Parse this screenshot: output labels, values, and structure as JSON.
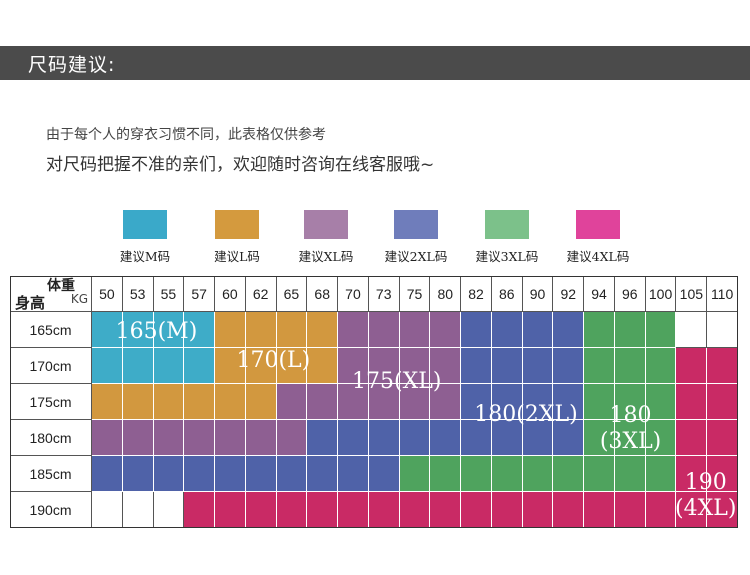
{
  "header": {
    "title": "尺码建议:"
  },
  "intro": {
    "line1": "由于每个人的穿衣习惯不同，此表格仅供参考",
    "line2": "对尺码把握不准的亲们，欢迎随时咨询在线客服哦~"
  },
  "legend": [
    {
      "label": "建议M码",
      "color": "#3aa9c9"
    },
    {
      "label": "建议L码",
      "color": "#d49a3e"
    },
    {
      "label": "建议XL码",
      "color": "#a77fa8"
    },
    {
      "label": "建议2XL码",
      "color": "#6f7dbb"
    },
    {
      "label": "建议3XL码",
      "color": "#7cc18a"
    },
    {
      "label": "建议4XL码",
      "color": "#e0439b"
    }
  ],
  "table": {
    "corner": {
      "weight": "体重",
      "unit": "KG",
      "height": "身高"
    },
    "weights": [
      "50",
      "53",
      "55",
      "57",
      "60",
      "62",
      "65",
      "68",
      "70",
      "73",
      "75",
      "80",
      "82",
      "86",
      "90",
      "92",
      "94",
      "96",
      "100",
      "105",
      "110"
    ],
    "heights": [
      "165cm",
      "170cm",
      "175cm",
      "180cm",
      "185cm",
      "190cm"
    ],
    "cell_colors": {
      "M": "#3eacc8",
      "L": "#d2983f",
      "XL": "#8e5f92",
      "2XL": "#4f62a8",
      "3XL": "#4fa35e",
      "4XL": "#c92a65",
      "none": "#ffffff"
    },
    "cells": [
      [
        "M",
        "M",
        "M",
        "M",
        "L",
        "L",
        "L",
        "L",
        "XL",
        "XL",
        "XL",
        "XL",
        "2XL",
        "2XL",
        "2XL",
        "2XL",
        "3XL",
        "3XL",
        "3XL",
        "none",
        "none"
      ],
      [
        "M",
        "M",
        "M",
        "M",
        "L",
        "L",
        "L",
        "L",
        "XL",
        "XL",
        "XL",
        "XL",
        "2XL",
        "2XL",
        "2XL",
        "2XL",
        "3XL",
        "3XL",
        "3XL",
        "4XL",
        "4XL"
      ],
      [
        "L",
        "L",
        "L",
        "L",
        "L",
        "L",
        "XL",
        "XL",
        "XL",
        "XL",
        "XL",
        "XL",
        "2XL",
        "2XL",
        "2XL",
        "2XL",
        "3XL",
        "3XL",
        "3XL",
        "4XL",
        "4XL"
      ],
      [
        "XL",
        "XL",
        "XL",
        "XL",
        "XL",
        "XL",
        "XL",
        "2XL",
        "2XL",
        "2XL",
        "2XL",
        "2XL",
        "2XL",
        "2XL",
        "2XL",
        "2XL",
        "3XL",
        "3XL",
        "3XL",
        "4XL",
        "4XL"
      ],
      [
        "2XL",
        "2XL",
        "2XL",
        "2XL",
        "2XL",
        "2XL",
        "2XL",
        "2XL",
        "2XL",
        "2XL",
        "3XL",
        "3XL",
        "3XL",
        "3XL",
        "3XL",
        "3XL",
        "3XL",
        "3XL",
        "3XL",
        "4XL",
        "4XL"
      ],
      [
        "none",
        "none",
        "none",
        "4XL",
        "4XL",
        "4XL",
        "4XL",
        "4XL",
        "4XL",
        "4XL",
        "4XL",
        "4XL",
        "4XL",
        "4XL",
        "4XL",
        "4XL",
        "4XL",
        "4XL",
        "4XL",
        "4XL",
        "4XL"
      ]
    ],
    "band_labels": [
      {
        "text": "165(M)"
      },
      {
        "text": "170(L)"
      },
      {
        "text": "175(XL)"
      },
      {
        "text": "180(2XL)"
      },
      {
        "text": "180\n(3XL)"
      },
      {
        "text": "190\n(4XL)"
      }
    ]
  }
}
